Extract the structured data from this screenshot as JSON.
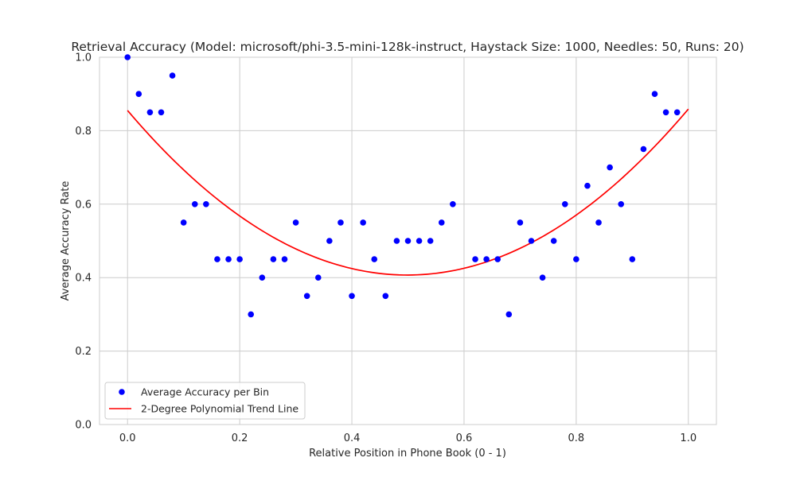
{
  "chart_data": {
    "type": "scatter",
    "title": "Retrieval Accuracy (Model: microsoft/phi-3.5-mini-128k-instruct, Haystack Size: 1000, Needles: 50, Runs: 20)",
    "xlabel": "Relative Position in Phone Book (0 - 1)",
    "ylabel": "Average Accuracy Rate",
    "xlim": [
      -0.05,
      1.05
    ],
    "ylim": [
      0.0,
      1.0
    ],
    "xticks": [
      "0.0",
      "0.2",
      "0.4",
      "0.6",
      "0.8",
      "1.0"
    ],
    "yticks": [
      "0.0",
      "0.2",
      "0.4",
      "0.6",
      "0.8",
      "1.0"
    ],
    "grid": true,
    "legend_position": "lower-left",
    "series": [
      {
        "name": "Average Accuracy per Bin",
        "kind": "scatter",
        "color": "#0000ff",
        "x": [
          0.0,
          0.02,
          0.04,
          0.06,
          0.08,
          0.1,
          0.12,
          0.14,
          0.16,
          0.18,
          0.2,
          0.22,
          0.24,
          0.26,
          0.28,
          0.3,
          0.32,
          0.34,
          0.36,
          0.38,
          0.4,
          0.42,
          0.44,
          0.46,
          0.48,
          0.5,
          0.52,
          0.54,
          0.56,
          0.58,
          0.62,
          0.64,
          0.66,
          0.68,
          0.7,
          0.72,
          0.74,
          0.76,
          0.78,
          0.8,
          0.82,
          0.84,
          0.86,
          0.88,
          0.9,
          0.92,
          0.94,
          0.96,
          0.98
        ],
        "y": [
          1.0,
          0.9,
          0.85,
          0.85,
          0.95,
          0.55,
          0.6,
          0.6,
          0.45,
          0.45,
          0.45,
          0.3,
          0.4,
          0.45,
          0.45,
          0.55,
          0.35,
          0.4,
          0.5,
          0.55,
          0.35,
          0.55,
          0.45,
          0.35,
          0.5,
          0.5,
          0.5,
          0.5,
          0.55,
          0.6,
          0.45,
          0.45,
          0.45,
          0.3,
          0.55,
          0.5,
          0.4,
          0.5,
          0.6,
          0.45,
          0.65,
          0.55,
          0.7,
          0.6,
          0.45,
          0.75,
          0.9,
          0.85,
          0.85
        ]
      },
      {
        "name": "2-Degree Polynomial Trend Line",
        "kind": "line",
        "color": "#ff0000",
        "polynomial": {
          "a": 1.8,
          "b": -1.796,
          "c": 0.855
        },
        "x_range": [
          0.0,
          1.0
        ]
      }
    ]
  }
}
